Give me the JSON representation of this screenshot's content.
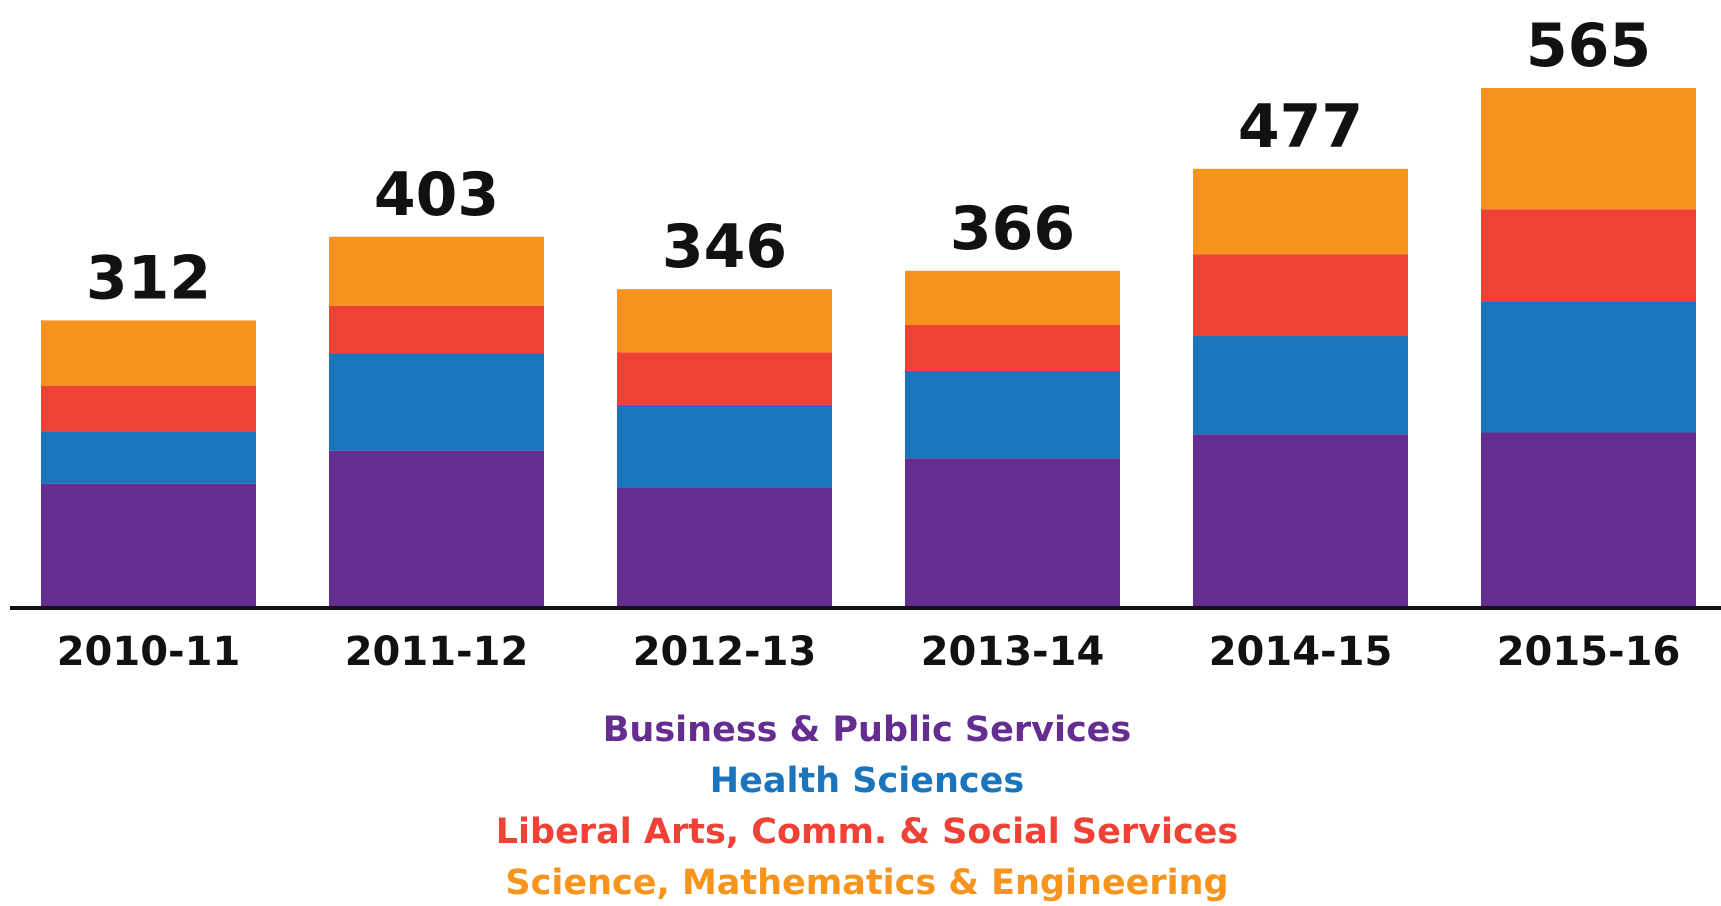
{
  "chart_data": {
    "type": "stacked_bar",
    "categories": [
      "2010-11",
      "2011-12",
      "2012-13",
      "2013-14",
      "2014-15",
      "2015-16"
    ],
    "totals": [
      312,
      403,
      346,
      366,
      477,
      565
    ],
    "series": [
      {
        "name": "Business & Public Services",
        "color": "#652d90",
        "values": [
          134,
          170,
          130,
          162,
          188,
          190
        ]
      },
      {
        "name": "Health Sciences",
        "color": "#1b75bc",
        "values": [
          57,
          106,
          90,
          95,
          107,
          143
        ]
      },
      {
        "name": "Liberal Arts, Comm. & Social Services",
        "color": "#ef4136",
        "values": [
          50,
          52,
          57,
          50,
          89,
          100
        ]
      },
      {
        "name": "Science, Mathematics & Engineering",
        "color": "#f7941d",
        "values": [
          71,
          75,
          69,
          59,
          93,
          132
        ]
      }
    ]
  }
}
